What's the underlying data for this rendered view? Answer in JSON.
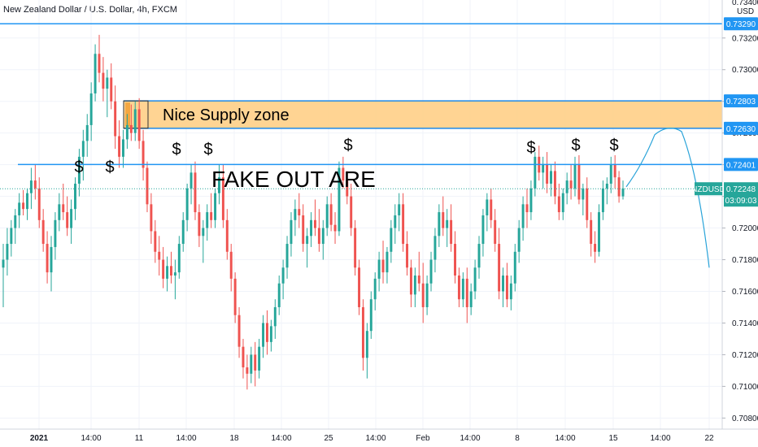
{
  "header": {
    "title": "New Zealand Dollar / U.S. Dollar, 4h, FXCM"
  },
  "price_axis": {
    "currency": "USD",
    "top_partial_label": "0.73400",
    "labels": [
      "0.73200",
      "0.73000",
      "0.72800",
      "0.72600",
      "0.72400",
      "0.72200",
      "0.72000",
      "0.71800",
      "0.71600",
      "0.71400",
      "0.71200",
      "0.71000",
      "0.70800"
    ]
  },
  "time_axis": {
    "labels": [
      "2021",
      "14:00",
      "11",
      "14:00",
      "18",
      "14:00",
      "25",
      "14:00",
      "Feb",
      "14:00",
      "8",
      "14:00",
      "15",
      "14:00",
      "22"
    ]
  },
  "price_tags": [
    {
      "id": "top-line",
      "text": "0.73290",
      "color": "#2196f3"
    },
    {
      "id": "supply-top",
      "text": "0.72803",
      "color": "#2196f3"
    },
    {
      "id": "supply-bottom",
      "text": "0.72630",
      "color": "#2196f3"
    },
    {
      "id": "resistance",
      "text": "0.72401",
      "color": "#2196f3"
    }
  ],
  "current_price": {
    "symbol": "NZDUSD",
    "price": "0.72248",
    "countdown": "03:09:03",
    "color": "#26a69a"
  },
  "annotations": {
    "supply_label": "Nice Supply zone",
    "fakeout_label": "FAKE OUT ARE",
    "dollar_sign": "$"
  },
  "colors": {
    "bull": "#26a69a",
    "bear": "#ef5350",
    "line": "#2196f3",
    "zone_fill": "#ffcc80",
    "zone_border": "#1e88e5",
    "zone_marker": "#f4a742"
  },
  "chart_data": {
    "type": "candlestick",
    "title": "New Zealand Dollar / U.S. Dollar, 4h, FXCM",
    "ylabel": "USD",
    "ylim": [
      0.7073,
      0.7344
    ],
    "horizontal_levels": [
      0.7329,
      0.72401
    ],
    "supply_zone": [
      0.7263,
      0.72803
    ],
    "current_price": 0.72248,
    "ohlc": [
      [
        0.7175,
        0.719,
        0.715,
        0.718
      ],
      [
        0.718,
        0.72,
        0.717,
        0.719
      ],
      [
        0.719,
        0.7205,
        0.7182,
        0.72
      ],
      [
        0.72,
        0.7212,
        0.719,
        0.7208
      ],
      [
        0.7208,
        0.7222,
        0.72,
        0.7216
      ],
      [
        0.7216,
        0.7224,
        0.7208,
        0.7212
      ],
      [
        0.7212,
        0.7225,
        0.7205,
        0.7222
      ],
      [
        0.7222,
        0.7238,
        0.7212,
        0.723
      ],
      [
        0.723,
        0.724,
        0.7218,
        0.7225
      ],
      [
        0.7225,
        0.7232,
        0.72,
        0.7205
      ],
      [
        0.7205,
        0.7212,
        0.7185,
        0.719
      ],
      [
        0.719,
        0.7198,
        0.7165,
        0.7172
      ],
      [
        0.7172,
        0.7195,
        0.716,
        0.7188
      ],
      [
        0.7188,
        0.721,
        0.718,
        0.7205
      ],
      [
        0.7205,
        0.7222,
        0.7198,
        0.7215
      ],
      [
        0.7215,
        0.7228,
        0.7205,
        0.721
      ],
      [
        0.721,
        0.722,
        0.7195,
        0.72
      ],
      [
        0.72,
        0.7218,
        0.719,
        0.7212
      ],
      [
        0.7212,
        0.7232,
        0.7205,
        0.7228
      ],
      [
        0.7228,
        0.725,
        0.722,
        0.7245
      ],
      [
        0.7245,
        0.7262,
        0.723,
        0.7255
      ],
      [
        0.7255,
        0.7272,
        0.7245,
        0.7265
      ],
      [
        0.7265,
        0.7292,
        0.7255,
        0.7285
      ],
      [
        0.7285,
        0.7316,
        0.728,
        0.731
      ],
      [
        0.731,
        0.7322,
        0.7292,
        0.7298
      ],
      [
        0.7298,
        0.7308,
        0.728,
        0.7288
      ],
      [
        0.7288,
        0.73,
        0.727,
        0.7295
      ],
      [
        0.7295,
        0.7304,
        0.7275,
        0.728
      ],
      [
        0.728,
        0.729,
        0.725,
        0.7258
      ],
      [
        0.7258,
        0.7268,
        0.7238,
        0.7245
      ],
      [
        0.7245,
        0.7262,
        0.7238,
        0.7256
      ],
      [
        0.7256,
        0.7272,
        0.725,
        0.7265
      ],
      [
        0.7265,
        0.7278,
        0.7255,
        0.726
      ],
      [
        0.726,
        0.728,
        0.7255,
        0.7275
      ],
      [
        0.7275,
        0.7282,
        0.725,
        0.7255
      ],
      [
        0.7255,
        0.7262,
        0.723,
        0.7238
      ],
      [
        0.7238,
        0.7242,
        0.721,
        0.7215
      ],
      [
        0.7215,
        0.7222,
        0.719,
        0.7198
      ],
      [
        0.7198,
        0.7205,
        0.7178,
        0.7185
      ],
      [
        0.7185,
        0.7195,
        0.717,
        0.718
      ],
      [
        0.718,
        0.7188,
        0.7162,
        0.7168
      ],
      [
        0.7168,
        0.7182,
        0.716,
        0.7176
      ],
      [
        0.7176,
        0.7185,
        0.7165,
        0.717
      ],
      [
        0.717,
        0.718,
        0.7155,
        0.7172
      ],
      [
        0.7172,
        0.7195,
        0.7168,
        0.719
      ],
      [
        0.719,
        0.721,
        0.7185,
        0.7205
      ],
      [
        0.7205,
        0.7228,
        0.7198,
        0.7225
      ],
      [
        0.7225,
        0.724,
        0.7215,
        0.7235
      ],
      [
        0.7235,
        0.7242,
        0.7205,
        0.721
      ],
      [
        0.721,
        0.7215,
        0.7188,
        0.7195
      ],
      [
        0.7195,
        0.7205,
        0.7178,
        0.72
      ],
      [
        0.72,
        0.7215,
        0.7192,
        0.721
      ],
      [
        0.721,
        0.7222,
        0.72,
        0.7205
      ],
      [
        0.7205,
        0.7225,
        0.72,
        0.7222
      ],
      [
        0.7222,
        0.724,
        0.7215,
        0.7232
      ],
      [
        0.7232,
        0.724,
        0.72,
        0.7205
      ],
      [
        0.7205,
        0.7212,
        0.718,
        0.7185
      ],
      [
        0.7185,
        0.719,
        0.716,
        0.7168
      ],
      [
        0.7168,
        0.7172,
        0.714,
        0.7145
      ],
      [
        0.7145,
        0.715,
        0.7118,
        0.7125
      ],
      [
        0.7125,
        0.713,
        0.7105,
        0.7112
      ],
      [
        0.7112,
        0.712,
        0.7098,
        0.7108
      ],
      [
        0.7108,
        0.7125,
        0.7102,
        0.712
      ],
      [
        0.712,
        0.7128,
        0.71,
        0.711
      ],
      [
        0.711,
        0.713,
        0.7105,
        0.7125
      ],
      [
        0.7125,
        0.7145,
        0.7118,
        0.714
      ],
      [
        0.714,
        0.7148,
        0.712,
        0.7128
      ],
      [
        0.7128,
        0.7142,
        0.7122,
        0.7138
      ],
      [
        0.7138,
        0.7155,
        0.713,
        0.715
      ],
      [
        0.715,
        0.717,
        0.7145,
        0.7165
      ],
      [
        0.7165,
        0.718,
        0.7155,
        0.7175
      ],
      [
        0.7175,
        0.7195,
        0.7168,
        0.719
      ],
      [
        0.719,
        0.721,
        0.7182,
        0.7205
      ],
      [
        0.7205,
        0.7218,
        0.7195,
        0.7212
      ],
      [
        0.7212,
        0.7222,
        0.72,
        0.7208
      ],
      [
        0.7208,
        0.7215,
        0.7185,
        0.719
      ],
      [
        0.719,
        0.72,
        0.7175,
        0.7195
      ],
      [
        0.7195,
        0.721,
        0.7188,
        0.7205
      ],
      [
        0.7205,
        0.7218,
        0.7195,
        0.72
      ],
      [
        0.72,
        0.7212,
        0.7185,
        0.719
      ],
      [
        0.719,
        0.7205,
        0.718,
        0.72
      ],
      [
        0.72,
        0.722,
        0.7195,
        0.7215
      ],
      [
        0.7215,
        0.7222,
        0.7198,
        0.7202
      ],
      [
        0.7202,
        0.721,
        0.719,
        0.7198
      ],
      [
        0.7198,
        0.7242,
        0.7195,
        0.7238
      ],
      [
        0.7238,
        0.7245,
        0.7225,
        0.723
      ],
      [
        0.723,
        0.7236,
        0.7215,
        0.722
      ],
      [
        0.722,
        0.7228,
        0.7195,
        0.72
      ],
      [
        0.72,
        0.7205,
        0.717,
        0.7175
      ],
      [
        0.7175,
        0.718,
        0.7145,
        0.715
      ],
      [
        0.715,
        0.7155,
        0.711,
        0.7118
      ],
      [
        0.7118,
        0.714,
        0.7105,
        0.7135
      ],
      [
        0.7135,
        0.716,
        0.713,
        0.7155
      ],
      [
        0.7155,
        0.7172,
        0.7148,
        0.7168
      ],
      [
        0.7168,
        0.7185,
        0.716,
        0.718
      ],
      [
        0.718,
        0.7192,
        0.7165,
        0.7172
      ],
      [
        0.7172,
        0.7188,
        0.7165,
        0.7185
      ],
      [
        0.7185,
        0.7205,
        0.7178,
        0.72
      ],
      [
        0.72,
        0.7215,
        0.719,
        0.7208
      ],
      [
        0.7208,
        0.7222,
        0.7198,
        0.7215
      ],
      [
        0.7215,
        0.7222,
        0.7185,
        0.719
      ],
      [
        0.719,
        0.7198,
        0.717,
        0.7175
      ],
      [
        0.7175,
        0.718,
        0.715,
        0.7158
      ],
      [
        0.7158,
        0.7175,
        0.715,
        0.717
      ],
      [
        0.717,
        0.7185,
        0.716,
        0.7165
      ],
      [
        0.7165,
        0.7178,
        0.714,
        0.715
      ],
      [
        0.715,
        0.717,
        0.7145,
        0.7165
      ],
      [
        0.7165,
        0.7185,
        0.716,
        0.718
      ],
      [
        0.718,
        0.72,
        0.7172,
        0.7195
      ],
      [
        0.7195,
        0.7215,
        0.7188,
        0.721
      ],
      [
        0.721,
        0.722,
        0.7195,
        0.72
      ],
      [
        0.72,
        0.7212,
        0.7188,
        0.7205
      ],
      [
        0.7205,
        0.7215,
        0.7185,
        0.719
      ],
      [
        0.719,
        0.7198,
        0.7165,
        0.717
      ],
      [
        0.717,
        0.7175,
        0.715,
        0.7155
      ],
      [
        0.7155,
        0.7172,
        0.715,
        0.7168
      ],
      [
        0.7168,
        0.7175,
        0.714,
        0.715
      ],
      [
        0.715,
        0.7165,
        0.7145,
        0.716
      ],
      [
        0.716,
        0.718,
        0.7155,
        0.7175
      ],
      [
        0.7175,
        0.7195,
        0.7168,
        0.719
      ],
      [
        0.719,
        0.7212,
        0.7182,
        0.7208
      ],
      [
        0.7208,
        0.7222,
        0.7198,
        0.7218
      ],
      [
        0.7218,
        0.7225,
        0.72,
        0.7205
      ],
      [
        0.7205,
        0.7212,
        0.7185,
        0.719
      ],
      [
        0.719,
        0.72,
        0.7155,
        0.716
      ],
      [
        0.716,
        0.7175,
        0.715,
        0.717
      ],
      [
        0.717,
        0.7178,
        0.715,
        0.7155
      ],
      [
        0.7155,
        0.717,
        0.7148,
        0.7165
      ],
      [
        0.7165,
        0.719,
        0.716,
        0.7185
      ],
      [
        0.7185,
        0.7205,
        0.7178,
        0.72
      ],
      [
        0.72,
        0.722,
        0.7192,
        0.7215
      ],
      [
        0.7215,
        0.7225,
        0.72,
        0.721
      ],
      [
        0.721,
        0.723,
        0.7205,
        0.7225
      ],
      [
        0.7225,
        0.7248,
        0.722,
        0.7245
      ],
      [
        0.7245,
        0.7252,
        0.723,
        0.7235
      ],
      [
        0.7235,
        0.7245,
        0.7225,
        0.724
      ],
      [
        0.724,
        0.7248,
        0.7222,
        0.7228
      ],
      [
        0.7228,
        0.724,
        0.722,
        0.7236
      ],
      [
        0.7236,
        0.7242,
        0.7215,
        0.722
      ],
      [
        0.722,
        0.7228,
        0.7205,
        0.721
      ],
      [
        0.721,
        0.7225,
        0.7205,
        0.7222
      ],
      [
        0.7222,
        0.7235,
        0.7215,
        0.723
      ],
      [
        0.723,
        0.724,
        0.7218,
        0.7225
      ],
      [
        0.7225,
        0.7245,
        0.722,
        0.724
      ],
      [
        0.724,
        0.7246,
        0.7215,
        0.7218
      ],
      [
        0.7218,
        0.7228,
        0.7208,
        0.7225
      ],
      [
        0.7225,
        0.7232,
        0.72,
        0.7205
      ],
      [
        0.7205,
        0.721,
        0.7182,
        0.719
      ],
      [
        0.719,
        0.7198,
        0.7178,
        0.7185
      ],
      [
        0.7185,
        0.7215,
        0.7182,
        0.721
      ],
      [
        0.721,
        0.723,
        0.7205,
        0.7225
      ],
      [
        0.7225,
        0.7232,
        0.7215,
        0.7228
      ],
      [
        0.7228,
        0.7245,
        0.7222,
        0.724
      ],
      [
        0.724,
        0.7246,
        0.7225,
        0.7232
      ],
      [
        0.7232,
        0.7236,
        0.7216,
        0.722
      ],
      [
        0.722,
        0.723,
        0.7218,
        0.7225
      ]
    ]
  }
}
